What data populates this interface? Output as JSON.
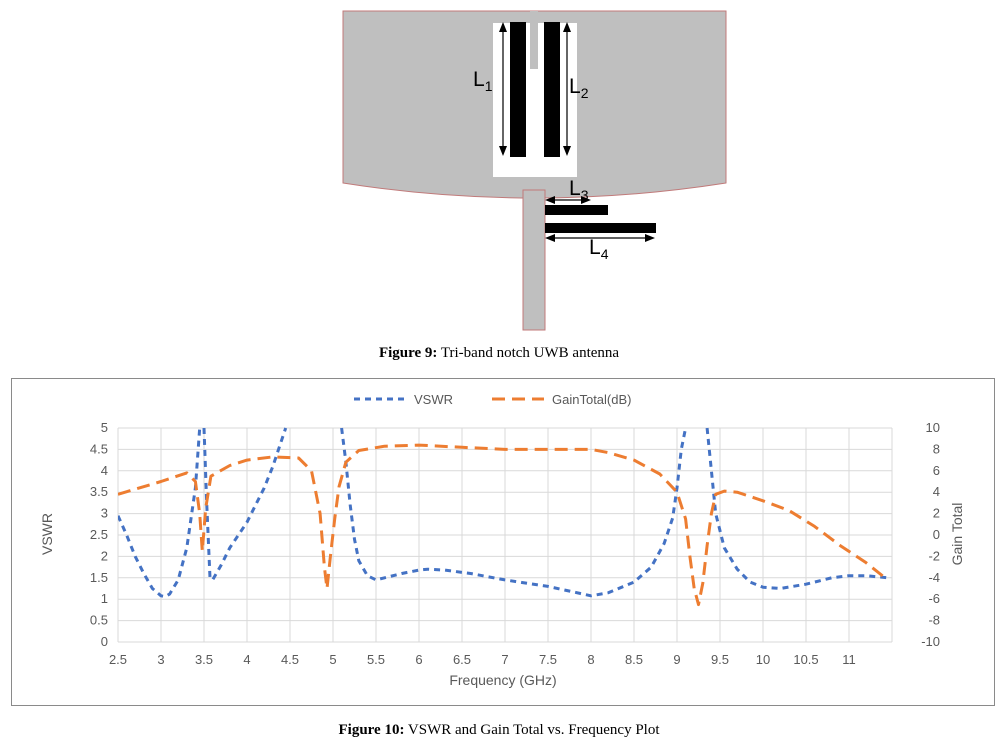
{
  "figure9": {
    "caption_label": "Figure 9:",
    "caption_text": " Tri-band notch UWB antenna",
    "dimensions": [
      {
        "letter": "L",
        "sub": "1"
      },
      {
        "letter": "L",
        "sub": "2"
      },
      {
        "letter": "L",
        "sub": "3"
      },
      {
        "letter": "L",
        "sub": "4"
      }
    ],
    "colors": {
      "patch": "#bfbfbf",
      "outline": "#c07a7a",
      "slot": "#ffffff",
      "strip": "#000000"
    }
  },
  "figure10": {
    "caption_label": "Figure 10:",
    "caption_text": " VSWR and Gain Total vs. Frequency Plot"
  },
  "chart_data": {
    "type": "line",
    "title": "",
    "xlabel": "Frequency (GHz)",
    "ylabel": "VSWR",
    "y2label": "Gain Total",
    "xlim": [
      2.5,
      11.5
    ],
    "ylim": [
      0,
      5
    ],
    "y2lim": [
      -10,
      10
    ],
    "xticks": [
      "2.5",
      "3",
      "3.5",
      "4",
      "4.5",
      "5",
      "5.5",
      "6",
      "6.5",
      "7",
      "7.5",
      "8",
      "8.5",
      "9",
      "9.5",
      "10",
      "10.5",
      "11"
    ],
    "yticks": [
      "0",
      "0.5",
      "1",
      "1.5",
      "2",
      "2.5",
      "3",
      "3.5",
      "4",
      "4.5",
      "5"
    ],
    "y2ticks": [
      "-10",
      "-8",
      "-6",
      "-4",
      "-2",
      "0",
      "2",
      "4",
      "6",
      "8",
      "10"
    ],
    "grid": true,
    "legend_position": "top",
    "series": [
      {
        "name": "VSWR",
        "axis": "left",
        "color": "#4472c4",
        "dash": "short",
        "segments": [
          [
            [
              2.5,
              2.95
            ],
            [
              2.6,
              2.5
            ],
            [
              2.7,
              2.0
            ],
            [
              2.8,
              1.6
            ],
            [
              2.9,
              1.25
            ],
            [
              3.0,
              1.08
            ],
            [
              3.05,
              1.06
            ],
            [
              3.1,
              1.12
            ],
            [
              3.2,
              1.45
            ],
            [
              3.3,
              2.2
            ],
            [
              3.4,
              3.6
            ],
            [
              3.45,
              5.0
            ]
          ],
          [
            [
              3.5,
              5.0
            ],
            [
              3.53,
              3.3
            ],
            [
              3.57,
              1.5
            ],
            [
              3.6,
              1.45
            ],
            [
              3.7,
              1.8
            ],
            [
              3.8,
              2.2
            ],
            [
              3.9,
              2.5
            ],
            [
              4.0,
              2.8
            ],
            [
              4.1,
              3.2
            ],
            [
              4.2,
              3.6
            ],
            [
              4.3,
              4.1
            ],
            [
              4.45,
              5.0
            ]
          ],
          [
            [
              5.1,
              5.0
            ],
            [
              5.15,
              4.2
            ],
            [
              5.2,
              3.2
            ],
            [
              5.25,
              2.4
            ],
            [
              5.3,
              1.9
            ],
            [
              5.4,
              1.55
            ],
            [
              5.5,
              1.45
            ],
            [
              5.6,
              1.5
            ],
            [
              5.8,
              1.6
            ],
            [
              6.0,
              1.68
            ],
            [
              6.1,
              1.7
            ],
            [
              6.3,
              1.68
            ],
            [
              6.6,
              1.6
            ],
            [
              7.0,
              1.45
            ],
            [
              7.5,
              1.3
            ],
            [
              8.0,
              1.08
            ],
            [
              8.2,
              1.15
            ],
            [
              8.5,
              1.4
            ],
            [
              8.7,
              1.75
            ],
            [
              8.85,
              2.3
            ],
            [
              8.95,
              2.9
            ],
            [
              9.0,
              3.6
            ],
            [
              9.05,
              4.5
            ],
            [
              9.1,
              5.0
            ]
          ],
          [
            [
              9.35,
              5.0
            ],
            [
              9.4,
              4.0
            ],
            [
              9.45,
              3.0
            ],
            [
              9.55,
              2.2
            ],
            [
              9.7,
              1.7
            ],
            [
              9.85,
              1.4
            ],
            [
              10.0,
              1.28
            ],
            [
              10.2,
              1.25
            ],
            [
              10.5,
              1.35
            ],
            [
              10.8,
              1.5
            ],
            [
              11.0,
              1.55
            ],
            [
              11.2,
              1.55
            ],
            [
              11.45,
              1.5
            ]
          ]
        ]
      },
      {
        "name": "GainTotal(dB)",
        "axis": "right",
        "color": "#ed7d31",
        "dash": "long",
        "segments": [
          [
            [
              2.5,
              3.8
            ],
            [
              3.0,
              5.0
            ],
            [
              3.3,
              5.8
            ],
            [
              3.4,
              5.0
            ],
            [
              3.45,
              2.0
            ],
            [
              3.48,
              -1.5
            ],
            [
              3.52,
              2.5
            ],
            [
              3.58,
              5.5
            ],
            [
              3.8,
              6.5
            ],
            [
              4.0,
              7.0
            ],
            [
              4.3,
              7.3
            ],
            [
              4.6,
              7.2
            ],
            [
              4.75,
              6.0
            ],
            [
              4.85,
              2.0
            ],
            [
              4.9,
              -3.0
            ],
            [
              4.93,
              -5.0
            ],
            [
              4.97,
              -2.0
            ],
            [
              5.02,
              1.5
            ],
            [
              5.07,
              4.5
            ],
            [
              5.15,
              6.8
            ],
            [
              5.3,
              7.9
            ],
            [
              5.6,
              8.3
            ],
            [
              6.0,
              8.4
            ],
            [
              6.5,
              8.2
            ],
            [
              7.0,
              8.0
            ],
            [
              7.5,
              8.0
            ],
            [
              8.0,
              8.0
            ],
            [
              8.2,
              7.7
            ],
            [
              8.5,
              7.0
            ],
            [
              8.8,
              5.7
            ],
            [
              9.0,
              4.0
            ],
            [
              9.1,
              1.5
            ],
            [
              9.15,
              -2.0
            ],
            [
              9.2,
              -5.0
            ],
            [
              9.25,
              -6.5
            ],
            [
              9.3,
              -4.5
            ],
            [
              9.35,
              -1.0
            ],
            [
              9.4,
              2.0
            ],
            [
              9.45,
              3.8
            ],
            [
              9.55,
              4.1
            ],
            [
              9.7,
              4.0
            ],
            [
              10.0,
              3.2
            ],
            [
              10.3,
              2.3
            ],
            [
              10.6,
              0.8
            ],
            [
              10.9,
              -1.0
            ],
            [
              11.2,
              -2.6
            ],
            [
              11.45,
              -4.2
            ]
          ]
        ]
      }
    ]
  }
}
